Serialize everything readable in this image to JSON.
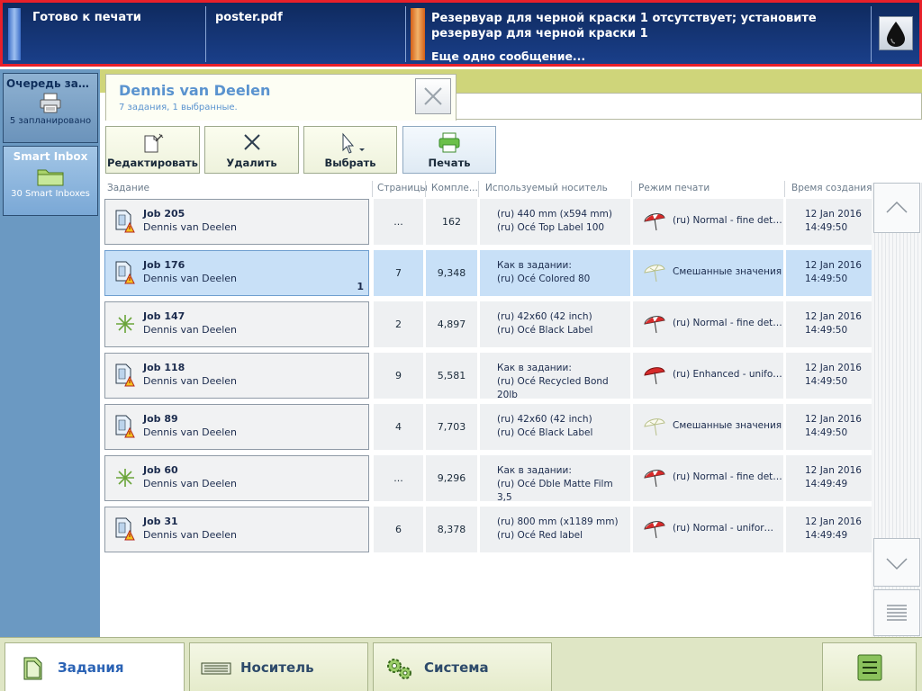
{
  "status_bar": {
    "printer_status": "Готово к печати",
    "file_name": "poster.pdf",
    "message": "Резервуар для черной краски 1 отсутствует; установите резервуар для черной краски 1",
    "more": "Еще одно сообщение...",
    "ink_icon": "ink-drop-icon"
  },
  "left_panel": {
    "queue": {
      "title": "Очередь зада...",
      "subtitle": "5 запланировано",
      "icon": "printer-icon"
    },
    "smart_inbox": {
      "title": "Smart Inbox",
      "subtitle": "30 Smart Inboxes",
      "icon": "folder-icon"
    }
  },
  "user_panel": {
    "name": "Dennis van Deelen",
    "summary": "7 задания, 1 выбранные."
  },
  "toolbar": {
    "edit": "Редактировать",
    "delete": "Удалить",
    "select": "Выбрать",
    "print": "Печать"
  },
  "columns": {
    "job": "Задание",
    "pages": "Страницы",
    "complete": "Компле...",
    "media": "Используемый носитель",
    "mode": "Режим печати",
    "created": "Время создания"
  },
  "jobs": [
    {
      "name": "Job 205",
      "owner": "Dennis van Deelen",
      "icon": "document-warning-icon",
      "count": "",
      "pages": "...",
      "complete": "162",
      "media1": "(ru) 440 mm (x594 mm)",
      "media2": "(ru) Océ Top Label 100",
      "mode": "(ru) Normal - fine details",
      "mode_icon": "umbrella-red-icon",
      "date": "12 Jan 2016",
      "time": "14:49:50",
      "selected": false
    },
    {
      "name": "Job 176",
      "owner": "Dennis van Deelen",
      "icon": "document-warning-icon",
      "count": "1",
      "pages": "7",
      "complete": "9,348",
      "media1": "Как в задании:",
      "media2": "(ru) Océ Colored 80",
      "mode": "Смешанные значения",
      "mode_icon": "umbrella-outline-icon",
      "date": "12 Jan 2016",
      "time": "14:49:50",
      "selected": true
    },
    {
      "name": "Job 147",
      "owner": "Dennis van Deelen",
      "icon": "sparkle-icon",
      "count": "",
      "pages": "2",
      "complete": "4,897",
      "media1": "(ru) 42x60 (42 inch)",
      "media2": "(ru) Océ Black Label",
      "mode": "(ru) Normal - fine details",
      "mode_icon": "umbrella-red-icon",
      "date": "12 Jan 2016",
      "time": "14:49:50",
      "selected": false
    },
    {
      "name": "Job 118",
      "owner": "Dennis van Deelen",
      "icon": "document-warning-icon",
      "count": "",
      "pages": "9",
      "complete": "5,581",
      "media1": "Как в задании:",
      "media2": "(ru) Océ Recycled Bond 20lb",
      "mode": "(ru) Enhanced - unifor...",
      "mode_icon": "umbrella-red-solid-icon",
      "date": "12 Jan 2016",
      "time": "14:49:50",
      "selected": false
    },
    {
      "name": "Job 89",
      "owner": "Dennis van Deelen",
      "icon": "document-warning-icon",
      "count": "",
      "pages": "4",
      "complete": "7,703",
      "media1": "(ru) 42x60 (42 inch)",
      "media2": "(ru) Océ Black Label",
      "mode": "Смешанные значения",
      "mode_icon": "umbrella-outline-icon",
      "date": "12 Jan 2016",
      "time": "14:49:50",
      "selected": false
    },
    {
      "name": "Job 60",
      "owner": "Dennis van Deelen",
      "icon": "sparkle-icon",
      "count": "",
      "pages": "...",
      "complete": "9,296",
      "media1": "Как в задании:",
      "media2": "(ru) Océ Dble Matte Film 3,5",
      "mode": "(ru) Normal - fine details",
      "mode_icon": "umbrella-red-icon",
      "date": "12 Jan 2016",
      "time": "14:49:49",
      "selected": false
    },
    {
      "name": "Job 31",
      "owner": "Dennis van Deelen",
      "icon": "document-warning-icon",
      "count": "",
      "pages": "6",
      "complete": "8,378",
      "media1": "(ru) 800 mm (x1189 mm)",
      "media2": "(ru) Océ Red label",
      "mode": "(ru) Normal - uniform a...",
      "mode_icon": "umbrella-red-icon",
      "date": "12 Jan 2016",
      "time": "14:49:49",
      "selected": false
    }
  ],
  "bottom_nav": {
    "jobs": "Задания",
    "media": "Носитель",
    "system": "Система"
  },
  "colors": {
    "alert_border": "#e8202a",
    "status_bg": "#1a3f8a",
    "selection": "#c8e0f7",
    "accent_blue": "#2b63b5"
  }
}
